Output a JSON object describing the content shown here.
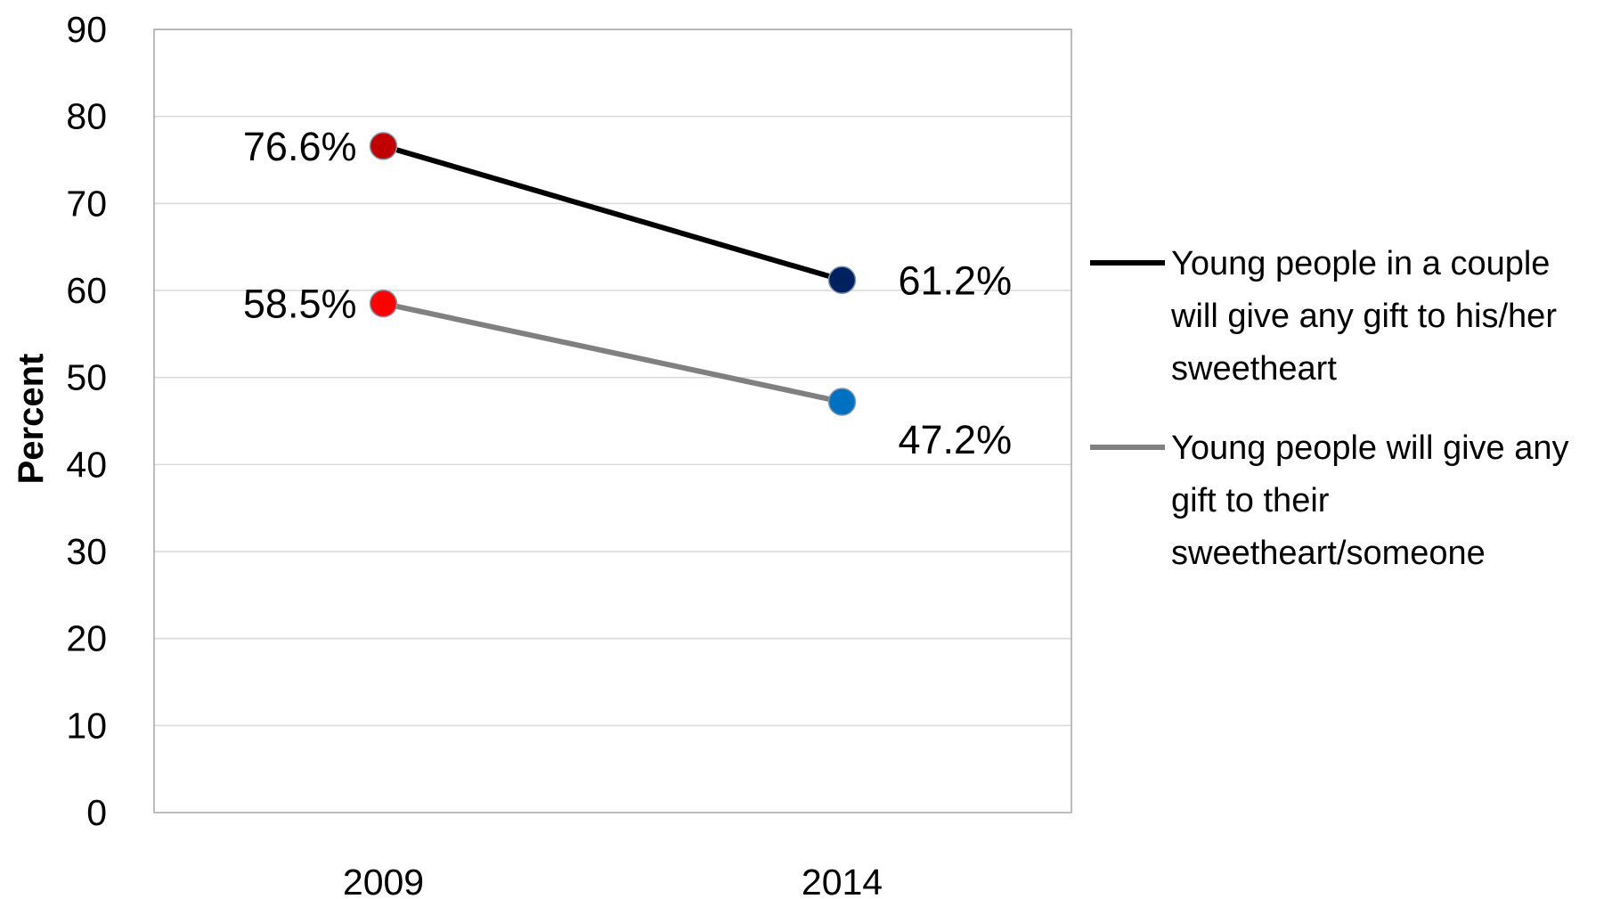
{
  "chart_data": {
    "type": "line",
    "categories": [
      "2009",
      "2014"
    ],
    "ylabel": "Percent",
    "xlabel": "",
    "ylim": [
      0,
      90
    ],
    "yticks": [
      0,
      10,
      20,
      30,
      40,
      50,
      60,
      70,
      80,
      90
    ],
    "grid": true,
    "legend_position": "right",
    "series": [
      {
        "name": "Young people in a couple will give any gift to his/her sweetheart",
        "legend_lines": [
          "Young people in a couple",
          "will give any gift to his/her",
          "sweetheart"
        ],
        "values": [
          76.6,
          61.2
        ],
        "data_labels": [
          "76.6%",
          "61.2%"
        ],
        "line_color": "#000000",
        "marker_colors": [
          "#c00000",
          "#002060"
        ]
      },
      {
        "name": "Young people will give any gift to their sweetheart/someone",
        "legend_lines": [
          "Young people will give any",
          "gift to their",
          "sweetheart/someone"
        ],
        "values": [
          58.5,
          47.2
        ],
        "data_labels": [
          "58.5%",
          "47.2%"
        ],
        "line_color": "#808080",
        "marker_colors": [
          "#ff0000",
          "#0070c0"
        ]
      }
    ]
  }
}
